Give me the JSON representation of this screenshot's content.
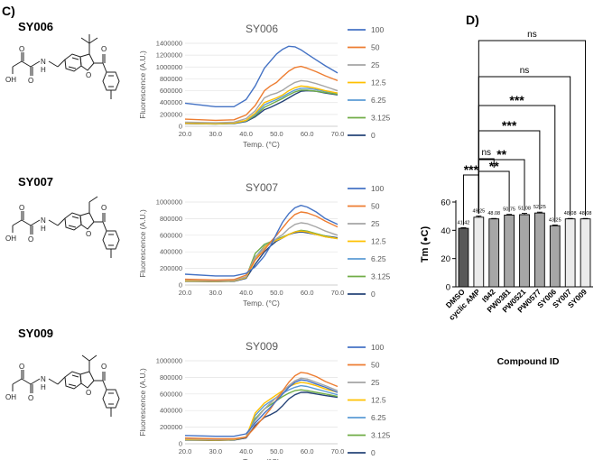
{
  "panel_c_label": "C)",
  "panel_d_label": "D)",
  "compounds": [
    {
      "name": "SY006",
      "substituent": "tert-butyl"
    },
    {
      "name": "SY007",
      "substituent": "ethyl"
    },
    {
      "name": "SY009",
      "substituent": "isopropyl"
    }
  ],
  "structure_labels": {
    "oxygen": "O",
    "hydroxyl": "OH",
    "amine_n": "N",
    "amine_h": "H"
  },
  "colors": {
    "s100": "#4472C4",
    "s50": "#ED7D31",
    "s25": "#A5A5A5",
    "s12_5": "#FFC000",
    "s6_25": "#5B9BD5",
    "s3_125": "#70AD47",
    "s0": "#264478",
    "bar_dark": "#595959",
    "bar_mid": "#a6a6a6",
    "bar_light": "#ebebeb"
  },
  "chart_data": [
    {
      "type": "line",
      "title": "SY006",
      "xlabel": "Temp. (°C)",
      "ylabel": "Fluorescence (A.U.)",
      "xlim": [
        20,
        70
      ],
      "ylim": [
        0,
        1400000
      ],
      "x_ticks": [
        "20.0",
        "30.0",
        "40.0",
        "50.0",
        "60.0",
        "70.0"
      ],
      "y_ticks": [
        "0",
        "200000",
        "400000",
        "600000",
        "800000",
        "1000000",
        "1200000",
        "1400000"
      ],
      "legend": [
        "100",
        "50",
        "25",
        "12.5",
        "6.25",
        "3.125",
        "0"
      ],
      "x": [
        20,
        30,
        36,
        40,
        43,
        46,
        48,
        50,
        52,
        54,
        56,
        58,
        60,
        63,
        66,
        70
      ],
      "series": [
        {
          "name": "100",
          "values": [
            390000,
            330000,
            330000,
            450000,
            680000,
            980000,
            1100000,
            1220000,
            1300000,
            1350000,
            1340000,
            1290000,
            1220000,
            1120000,
            1020000,
            900000
          ]
        },
        {
          "name": "50",
          "values": [
            120000,
            100000,
            110000,
            190000,
            350000,
            600000,
            680000,
            740000,
            840000,
            930000,
            990000,
            1010000,
            980000,
            920000,
            850000,
            770000
          ]
        },
        {
          "name": "25",
          "values": [
            70000,
            60000,
            70000,
            130000,
            260000,
            480000,
            530000,
            560000,
            610000,
            680000,
            740000,
            770000,
            760000,
            720000,
            670000,
            600000
          ]
        },
        {
          "name": "12.5",
          "values": [
            50000,
            45000,
            55000,
            100000,
            220000,
            400000,
            440000,
            480000,
            530000,
            600000,
            650000,
            680000,
            670000,
            640000,
            600000,
            560000
          ]
        },
        {
          "name": "6.25",
          "values": [
            50000,
            45000,
            55000,
            95000,
            200000,
            360000,
            410000,
            450000,
            500000,
            560000,
            610000,
            640000,
            640000,
            620000,
            590000,
            560000
          ]
        },
        {
          "name": "3.125",
          "values": [
            50000,
            40000,
            50000,
            90000,
            180000,
            320000,
            370000,
            420000,
            470000,
            530000,
            580000,
            610000,
            610000,
            590000,
            570000,
            540000
          ]
        },
        {
          "name": "0",
          "values": [
            45000,
            40000,
            45000,
            80000,
            160000,
            280000,
            320000,
            370000,
            420000,
            480000,
            540000,
            590000,
            600000,
            590000,
            560000,
            530000
          ]
        }
      ]
    },
    {
      "type": "line",
      "title": "SY007",
      "xlabel": "Temp. (°C)",
      "ylabel": "Fluorescence (A.U.)",
      "xlim": [
        20,
        70
      ],
      "ylim": [
        0,
        1000000
      ],
      "x_ticks": [
        "20.0",
        "30.0",
        "40.0",
        "50.0",
        "60.0",
        "70.0"
      ],
      "y_ticks": [
        "0",
        "200000",
        "400000",
        "600000",
        "800000",
        "1000000"
      ],
      "legend": [
        "100",
        "50",
        "25",
        "12.5",
        "6.25",
        "3.125",
        "0"
      ],
      "x": [
        20,
        30,
        36,
        40,
        43,
        46,
        48,
        50,
        52,
        54,
        56,
        58,
        60,
        63,
        66,
        70
      ],
      "series": [
        {
          "name": "100",
          "values": [
            130000,
            110000,
            110000,
            140000,
            220000,
            350000,
            470000,
            620000,
            760000,
            860000,
            930000,
            960000,
            940000,
            880000,
            800000,
            730000
          ]
        },
        {
          "name": "50",
          "values": [
            70000,
            60000,
            65000,
            120000,
            300000,
            420000,
            520000,
            600000,
            690000,
            780000,
            850000,
            880000,
            870000,
            830000,
            770000,
            700000
          ]
        },
        {
          "name": "25",
          "values": [
            60000,
            50000,
            55000,
            100000,
            340000,
            440000,
            500000,
            560000,
            610000,
            680000,
            730000,
            750000,
            740000,
            700000,
            650000,
            600000
          ]
        },
        {
          "name": "12.5",
          "values": [
            50000,
            45000,
            50000,
            90000,
            300000,
            460000,
            510000,
            540000,
            570000,
            610000,
            640000,
            650000,
            640000,
            610000,
            580000,
            560000
          ]
        },
        {
          "name": "6.25",
          "values": [
            50000,
            45000,
            50000,
            90000,
            330000,
            470000,
            510000,
            540000,
            570000,
            610000,
            640000,
            650000,
            640000,
            610000,
            580000,
            560000
          ]
        },
        {
          "name": "3.125",
          "values": [
            50000,
            45000,
            50000,
            95000,
            380000,
            490000,
            520000,
            550000,
            580000,
            610000,
            640000,
            660000,
            650000,
            620000,
            590000,
            560000
          ]
        },
        {
          "name": "0",
          "values": [
            45000,
            40000,
            45000,
            80000,
            250000,
            400000,
            470000,
            530000,
            570000,
            610000,
            630000,
            640000,
            630000,
            610000,
            590000,
            570000
          ]
        }
      ]
    },
    {
      "type": "line",
      "title": "SY009",
      "xlabel": "Temp. (°C)",
      "ylabel": "Fluorescence (A.U.)",
      "xlim": [
        20,
        70
      ],
      "ylim": [
        0,
        1000000
      ],
      "x_ticks": [
        "20.0",
        "30.0",
        "40.0",
        "50.0",
        "60.0",
        "70.0"
      ],
      "y_ticks": [
        "0",
        "200000",
        "400000",
        "600000",
        "800000",
        "1000000"
      ],
      "legend": [
        "100",
        "50",
        "25",
        "12.5",
        "6.25",
        "3.125",
        "0"
      ],
      "x": [
        20,
        30,
        36,
        40,
        43,
        46,
        48,
        50,
        52,
        54,
        56,
        58,
        60,
        63,
        66,
        70
      ],
      "series": [
        {
          "name": "100",
          "values": [
            100000,
            90000,
            90000,
            120000,
            250000,
            370000,
            440000,
            520000,
            600000,
            680000,
            740000,
            770000,
            760000,
            720000,
            680000,
            620000
          ]
        },
        {
          "name": "50",
          "values": [
            70000,
            60000,
            60000,
            80000,
            200000,
            330000,
            420000,
            530000,
            640000,
            740000,
            820000,
            860000,
            850000,
            810000,
            750000,
            690000
          ]
        },
        {
          "name": "25",
          "values": [
            60000,
            50000,
            55000,
            80000,
            280000,
            420000,
            490000,
            560000,
            630000,
            700000,
            760000,
            790000,
            780000,
            740000,
            700000,
            640000
          ]
        },
        {
          "name": "12.5",
          "values": [
            50000,
            45000,
            50000,
            80000,
            370000,
            490000,
            540000,
            590000,
            640000,
            690000,
            720000,
            740000,
            730000,
            700000,
            660000,
            620000
          ]
        },
        {
          "name": "6.25",
          "values": [
            50000,
            45000,
            50000,
            80000,
            340000,
            460000,
            510000,
            560000,
            610000,
            650000,
            680000,
            700000,
            690000,
            660000,
            630000,
            590000
          ]
        },
        {
          "name": "3.125",
          "values": [
            50000,
            45000,
            50000,
            80000,
            300000,
            420000,
            470000,
            520000,
            570000,
            610000,
            640000,
            650000,
            640000,
            620000,
            600000,
            570000
          ]
        },
        {
          "name": "0",
          "values": [
            45000,
            40000,
            45000,
            70000,
            220000,
            320000,
            350000,
            390000,
            460000,
            540000,
            590000,
            620000,
            620000,
            600000,
            580000,
            560000
          ]
        }
      ]
    },
    {
      "type": "bar",
      "title": "",
      "xlabel": "Compound ID",
      "ylabel": "Tm (°C)",
      "ylabel_prefix": "Tm (",
      "ylabel_symbol": "●",
      "ylabel_suffix": "C)",
      "ylim": [
        0,
        60
      ],
      "y_ticks": [
        "0",
        "20",
        "40",
        "60"
      ],
      "categories": [
        "DMSO",
        "cyclic AMP",
        "I942",
        "PW0381",
        "PW0521",
        "PW0577",
        "SY006",
        "SY007",
        "SY009"
      ],
      "values": [
        41.42,
        49.25,
        48.08,
        50.75,
        51.08,
        52.25,
        43.25,
        48.08,
        48.08
      ],
      "value_labels": [
        "41.42",
        "49.25",
        "48.08",
        "50.75",
        "51.08",
        "52.25",
        "43.25",
        "48.08",
        "48.08"
      ],
      "errors": [
        0.4,
        0.8,
        0.3,
        0.5,
        0.9,
        0.6,
        0.5,
        0.3,
        0.3
      ],
      "shades": [
        "dark",
        "light",
        "mid",
        "mid",
        "mid",
        "mid",
        "mid",
        "light",
        "light"
      ],
      "comparisons": [
        {
          "ref": 1,
          "target": 8,
          "label": "ns"
        },
        {
          "ref": 1,
          "target": 7,
          "label": "ns"
        },
        {
          "ref": 1,
          "target": 6,
          "label": "***"
        },
        {
          "ref": 1,
          "target": 5,
          "label": "***"
        },
        {
          "ref": 1,
          "target": 4,
          "label": "**"
        },
        {
          "ref": 1,
          "target": 2,
          "label": "ns"
        },
        {
          "ref": 1,
          "target": 3,
          "label": "**"
        },
        {
          "ref": 1,
          "target": 0,
          "label": "***"
        }
      ]
    }
  ]
}
